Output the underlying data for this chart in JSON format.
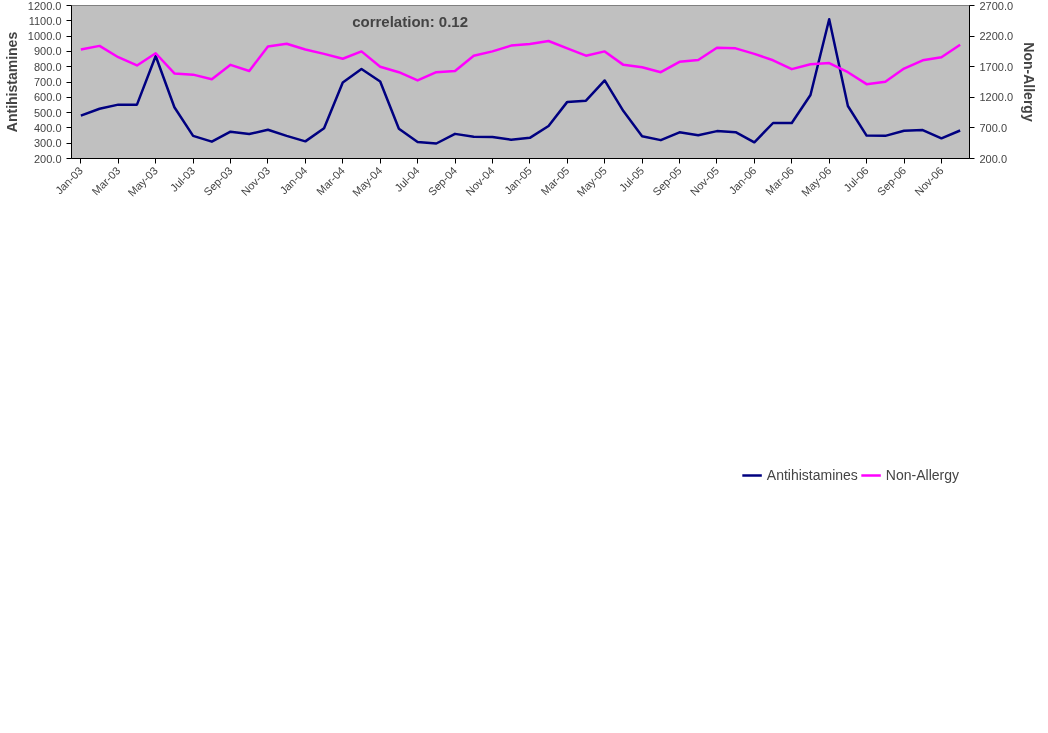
{
  "chart_data": {
    "type": "line",
    "categories": [
      "Jan-03",
      null,
      "Mar-03",
      null,
      "May-03",
      null,
      "Jul-03",
      null,
      "Sep-03",
      null,
      "Nov-03",
      null,
      "Jan-04",
      null,
      "Mar-04",
      null,
      "May-04",
      null,
      "Jul-04",
      null,
      "Sep-04",
      null,
      "Nov-04",
      null,
      "Jan-05",
      null,
      "Mar-05",
      null,
      "May-05",
      null,
      "Jul-05",
      null,
      "Sep-05",
      null,
      "Nov-05",
      null,
      "Jan-06",
      null,
      "Mar-06",
      null,
      "May-06",
      null,
      "Jul-06",
      null,
      "Sep-06",
      null,
      "Nov-06",
      null
    ],
    "series": [
      {
        "name": "Antihistamines",
        "color": "#000080",
        "values": [
          480,
          525,
          552,
          552,
          870,
          535,
          348,
          310,
          375,
          360,
          388,
          348,
          312,
          398,
          697,
          785,
          703,
          395,
          308,
          298,
          361,
          342,
          340,
          323,
          335,
          412,
          570,
          578,
          710,
          510,
          345,
          320,
          371,
          352,
          379,
          372,
          306,
          432,
          432,
          615,
          1110,
          543,
          350,
          348,
          381,
          386,
          332,
          383
        ]
      },
      {
        "name": "Non-Allergy",
        "color": "#ff00ff",
        "axis": "y2",
        "values": [
          1980,
          2040,
          1855,
          1720,
          1920,
          1590,
          1570,
          1495,
          1730,
          1630,
          2030,
          2075,
          1980,
          1910,
          1830,
          1950,
          1700,
          1610,
          1475,
          1610,
          1630,
          1880,
          1950,
          2045,
          2070,
          2120,
          2000,
          1880,
          1950,
          1730,
          1690,
          1610,
          1780,
          1810,
          2010,
          2000,
          1910,
          1805,
          1660,
          1740,
          1760,
          1610,
          1415,
          1455,
          1670,
          1805,
          1855,
          2060
        ]
      }
    ],
    "ylabel": "Antihistamines",
    "y2label": "Non-Allergy",
    "ylim": [
      200,
      1200
    ],
    "yticks": [
      {
        "value": 200,
        "label": "200.0"
      },
      {
        "value": 300,
        "label": "300.0"
      },
      {
        "value": 400,
        "label": "400.0"
      },
      {
        "value": 500,
        "label": "500.0"
      },
      {
        "value": 600,
        "label": "600.0"
      },
      {
        "value": 700,
        "label": "700.0"
      },
      {
        "value": 800,
        "label": "800.0"
      },
      {
        "value": 900,
        "label": "900.0"
      },
      {
        "value": 1000,
        "label": "1000.0"
      },
      {
        "value": 1100,
        "label": "1100.0"
      },
      {
        "value": 1200,
        "label": "1200.0"
      }
    ],
    "y2lim": [
      200,
      2700
    ],
    "y2ticks": [
      {
        "value": 200,
        "label": "200.0"
      },
      {
        "value": 700,
        "label": "700.0"
      },
      {
        "value": 1200,
        "label": "1200.0"
      },
      {
        "value": 1700,
        "label": "1700.0"
      },
      {
        "value": 2200,
        "label": "2200.0"
      },
      {
        "value": 2700,
        "label": "2700.0"
      }
    ],
    "annotations": [
      "correlation: 0.12"
    ],
    "grid": false,
    "legend": "bottom",
    "marker": "none",
    "line_style": "solid"
  }
}
